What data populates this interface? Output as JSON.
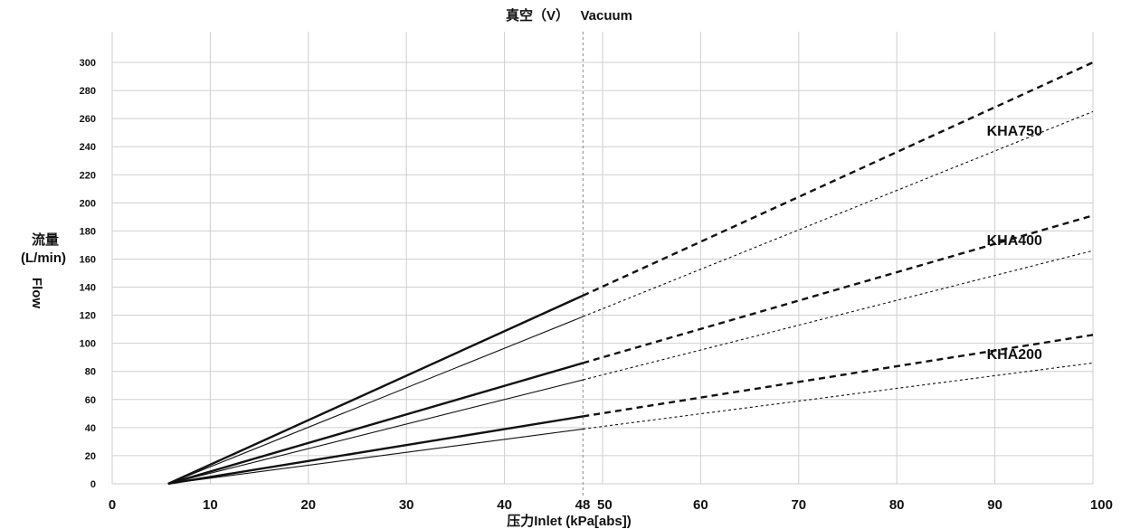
{
  "chart_data": {
    "type": "line",
    "title": "真空（V）   Vacuum",
    "xlabel": "压力Inlet (kPa[abs])",
    "ylabel_cn": "流量",
    "ylabel_unit": "(L/min)",
    "ylabel_en": "Flow",
    "xlim": [
      0,
      100
    ],
    "ylim": [
      0,
      300
    ],
    "x_ticks": [
      "0",
      "10",
      "20",
      "30",
      "40",
      "48",
      "50",
      "60",
      "70",
      "80",
      "90",
      "100"
    ],
    "x_tick_values": [
      0,
      10,
      20,
      30,
      40,
      48,
      50,
      60,
      70,
      80,
      90,
      100
    ],
    "y_ticks": [
      "0",
      "20",
      "40",
      "60",
      "80",
      "100",
      "120",
      "140",
      "160",
      "180",
      "200",
      "220",
      "240",
      "260",
      "280",
      "300"
    ],
    "y_tick_values": [
      0,
      20,
      40,
      60,
      80,
      100,
      120,
      140,
      160,
      180,
      200,
      220,
      240,
      260,
      280,
      300
    ],
    "vertical_marker_x": 48,
    "grid": true,
    "series": [
      {
        "name": "KHA750",
        "style": "thick",
        "points": [
          [
            5.7,
            0
          ],
          [
            48,
            134
          ],
          [
            100,
            300
          ]
        ]
      },
      {
        "name": "KHA750",
        "style": "thin",
        "points": [
          [
            5.7,
            0
          ],
          [
            48,
            119
          ],
          [
            100,
            265
          ]
        ]
      },
      {
        "name": "KHA400",
        "style": "thick",
        "points": [
          [
            5.7,
            0
          ],
          [
            48,
            86
          ],
          [
            100,
            191
          ]
        ]
      },
      {
        "name": "KHA400",
        "style": "thin",
        "points": [
          [
            5.7,
            0
          ],
          [
            48,
            74
          ],
          [
            100,
            166
          ]
        ]
      },
      {
        "name": "KHA200",
        "style": "thick",
        "points": [
          [
            5.7,
            0
          ],
          [
            48,
            48
          ],
          [
            100,
            106
          ]
        ]
      },
      {
        "name": "KHA200",
        "style": "thin",
        "points": [
          [
            5.7,
            0
          ],
          [
            48,
            39
          ],
          [
            100,
            86
          ]
        ]
      }
    ],
    "annotations": [
      {
        "text": "KHA750",
        "x": 92,
        "y": 248
      },
      {
        "text": "KHA400",
        "x": 92,
        "y": 170
      },
      {
        "text": "KHA200",
        "x": 92,
        "y": 89
      }
    ]
  }
}
